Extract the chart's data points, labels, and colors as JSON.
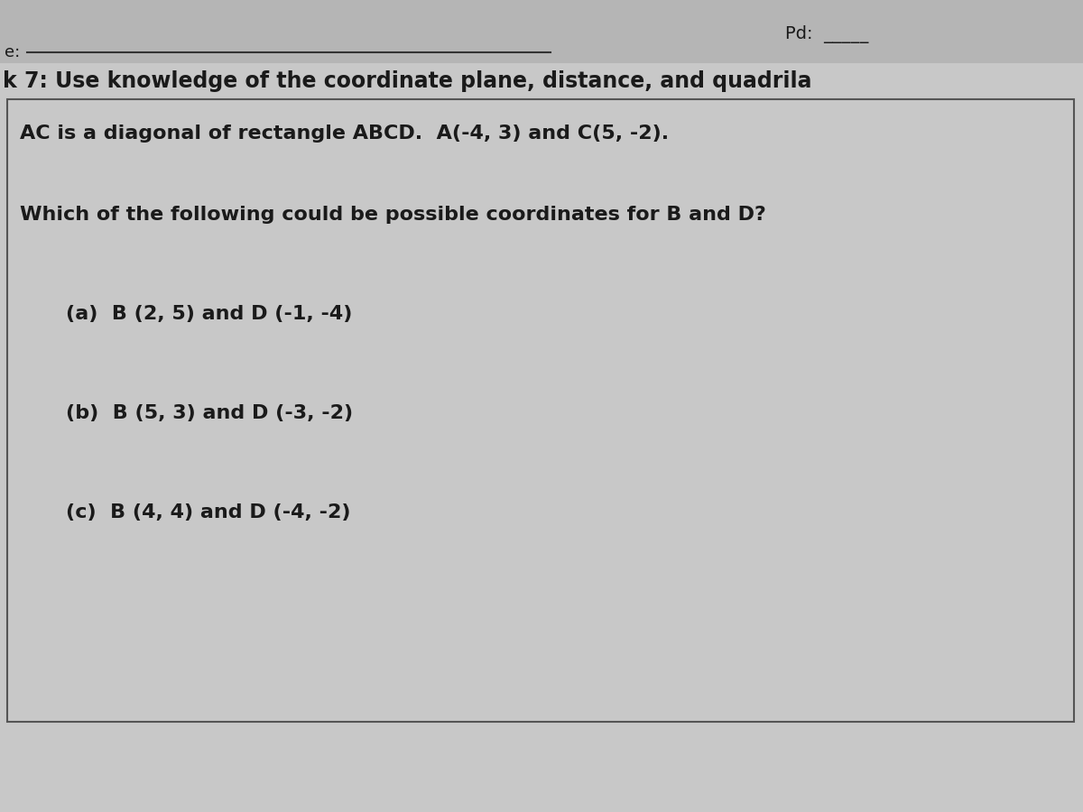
{
  "page_bg": "#c8c8c8",
  "box_bg": "#c8c8c8",
  "box_border": "#555555",
  "header_line_color": "#333333",
  "text_color": "#1a1a1a",
  "header_top_text": "Pd:  _____",
  "header_label_left": "e:",
  "header_line_label": "k 7: Use knowledge of the coordinate plane, distance, and quadrila",
  "line1": "AC is a diagonal of rectangle ABCD.  A(-4, 3) and C(5, -2).",
  "line2": "Which of the following could be possible coordinates for B and D?",
  "option_a": "(a)  B (2, 5) and D (-1, -4)",
  "option_b": "(b)  B (5, 3) and D (-3, -2)",
  "option_c": "(c)  B (4, 4) and D (-4, -2)",
  "figsize": [
    12,
    9
  ],
  "dpi": 100
}
